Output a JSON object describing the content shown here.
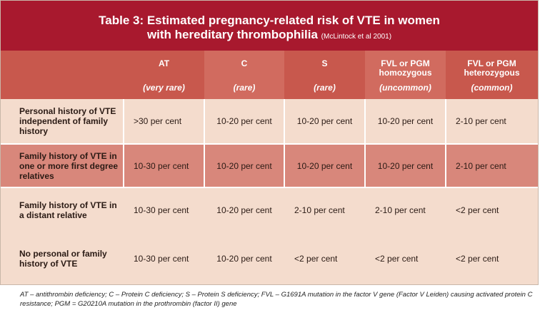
{
  "title": {
    "line1": "Table 3: Estimated pregnancy-related risk of VTE in women",
    "line2": "with hereditary thrombophilia",
    "reference": "(McLintock et al 2001)"
  },
  "columns": [
    {
      "name": "AT",
      "sub": "(very rare)"
    },
    {
      "name": "C",
      "sub": "(rare)"
    },
    {
      "name": "S",
      "sub": "(rare)"
    },
    {
      "name": "FVL or PGM homozygous",
      "sub": "(uncommon)"
    },
    {
      "name": "FVL or PGM heterozygous",
      "sub": "(common)"
    }
  ],
  "rows": [
    {
      "label": "Personal history of VTE independent of family history",
      "cells": [
        ">30 per cent",
        "10-20 per cent",
        "10-20 per cent",
        "10-20 per cent",
        "2-10 per cent"
      ]
    },
    {
      "label": "Family history of VTE in one or more first degree relatives",
      "cells": [
        "10-30 per cent",
        "10-20 per cent",
        "10-20 per cent",
        "10-20 per cent",
        "2-10 per cent"
      ]
    },
    {
      "label": "Family history of VTE in a distant relative",
      "cells": [
        "10-30 per cent",
        "10-20 per cent",
        "2-10 per cent",
        "2-10 per cent",
        "<2 per cent"
      ]
    },
    {
      "label": "No personal or family history of VTE",
      "cells": [
        "10-30 per cent",
        "10-20 per cent",
        "<2 per cent",
        "<2 per cent",
        "<2 per cent"
      ]
    }
  ],
  "footnote": "AT – antithrombin deficiency; C – Protein C deficiency; S – Protein S deficiency; FVL – G1691A mutation in the factor V gene (Factor V Leiden) causing activated protein C resistance; PGM = G20210A mutation in the prothrombin (factor II) gene"
}
